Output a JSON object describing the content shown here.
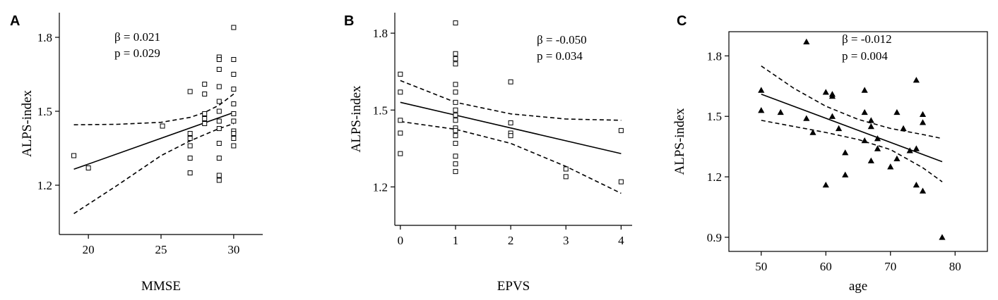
{
  "chart_data": [
    {
      "panel": "A",
      "type": "scatter",
      "xlabel": "MMSE",
      "ylabel": "ALPS-index",
      "xlim": [
        18,
        32
      ],
      "ylim": [
        1.0,
        1.9
      ],
      "xticks": [
        20,
        25,
        30
      ],
      "yticks": [
        1.2,
        1.5,
        1.8
      ],
      "marker": "square-open",
      "annotations": [
        "β = 0.021",
        "p = 0.029"
      ],
      "fit": {
        "x": [
          19,
          30
        ],
        "y": [
          1.265,
          1.495
        ]
      },
      "ci_upper": {
        "x": [
          19,
          22,
          25,
          27,
          28,
          29,
          30
        ],
        "y": [
          1.445,
          1.447,
          1.455,
          1.475,
          1.495,
          1.525,
          1.57
        ]
      },
      "ci_lower": {
        "x": [
          19,
          22,
          25,
          27,
          28,
          29,
          30
        ],
        "y": [
          1.085,
          1.2,
          1.32,
          1.38,
          1.405,
          1.43,
          1.45
        ]
      },
      "points": [
        [
          19,
          1.32
        ],
        [
          20,
          1.27
        ],
        [
          25.1,
          1.44
        ],
        [
          27,
          1.58
        ],
        [
          27,
          1.41
        ],
        [
          27,
          1.39
        ],
        [
          27,
          1.36
        ],
        [
          27,
          1.31
        ],
        [
          27,
          1.25
        ],
        [
          28,
          1.61
        ],
        [
          28,
          1.57
        ],
        [
          28,
          1.49
        ],
        [
          28,
          1.47
        ],
        [
          28,
          1.45
        ],
        [
          29,
          1.72
        ],
        [
          29,
          1.71
        ],
        [
          29,
          1.67
        ],
        [
          29,
          1.6
        ],
        [
          29,
          1.54
        ],
        [
          29,
          1.5
        ],
        [
          29,
          1.46
        ],
        [
          29,
          1.43
        ],
        [
          29,
          1.37
        ],
        [
          29,
          1.31
        ],
        [
          29,
          1.24
        ],
        [
          29,
          1.22
        ],
        [
          30,
          1.84
        ],
        [
          30,
          1.71
        ],
        [
          30,
          1.65
        ],
        [
          30,
          1.59
        ],
        [
          30,
          1.53
        ],
        [
          30,
          1.49
        ],
        [
          30,
          1.46
        ],
        [
          30,
          1.42
        ],
        [
          30,
          1.41
        ],
        [
          30,
          1.39
        ],
        [
          30,
          1.36
        ]
      ]
    },
    {
      "panel": "B",
      "type": "scatter",
      "xlabel": "EPVS",
      "ylabel": "ALPS-index",
      "xlim": [
        -0.1,
        4.2
      ],
      "ylim": [
        1.05,
        1.88
      ],
      "xticks": [
        0,
        1,
        2,
        3,
        4
      ],
      "yticks": [
        1.2,
        1.5,
        1.8
      ],
      "marker": "square-open",
      "annotations": [
        "β = -0.050",
        "p = 0.034"
      ],
      "fit": {
        "x": [
          0,
          4
        ],
        "y": [
          1.53,
          1.33
        ]
      },
      "ci_upper": {
        "x": [
          0,
          1,
          2,
          3,
          4
        ],
        "y": [
          1.615,
          1.53,
          1.485,
          1.465,
          1.46
        ]
      },
      "ci_lower": {
        "x": [
          0,
          1,
          2,
          3,
          4
        ],
        "y": [
          1.455,
          1.425,
          1.37,
          1.28,
          1.175
        ]
      },
      "points": [
        [
          0,
          1.64
        ],
        [
          0,
          1.57
        ],
        [
          0,
          1.46
        ],
        [
          0,
          1.41
        ],
        [
          0,
          1.33
        ],
        [
          1,
          1.84
        ],
        [
          1,
          1.72
        ],
        [
          1,
          1.7
        ],
        [
          1,
          1.68
        ],
        [
          1,
          1.6
        ],
        [
          1,
          1.57
        ],
        [
          1,
          1.53
        ],
        [
          1,
          1.5
        ],
        [
          1,
          1.48
        ],
        [
          1,
          1.46
        ],
        [
          1,
          1.43
        ],
        [
          1,
          1.42
        ],
        [
          1,
          1.4
        ],
        [
          1,
          1.37
        ],
        [
          1,
          1.32
        ],
        [
          1,
          1.29
        ],
        [
          1,
          1.26
        ],
        [
          2,
          1.61
        ],
        [
          2,
          1.45
        ],
        [
          2,
          1.41
        ],
        [
          2,
          1.4
        ],
        [
          3,
          1.27
        ],
        [
          3,
          1.24
        ],
        [
          4,
          1.42
        ],
        [
          4,
          1.22
        ]
      ]
    },
    {
      "panel": "C",
      "type": "scatter",
      "xlabel": "age",
      "ylabel": "ALPS-index",
      "xlim": [
        45,
        85
      ],
      "ylim": [
        0.83,
        1.92
      ],
      "xticks": [
        50,
        60,
        70,
        80
      ],
      "yticks": [
        0.9,
        1.2,
        1.5,
        1.8
      ],
      "marker": "triangle-filled",
      "annotations": [
        "β = -0.012",
        "p = 0.004"
      ],
      "fit": {
        "x": [
          50,
          78
        ],
        "y": [
          1.61,
          1.275
        ]
      },
      "ci_upper": {
        "x": [
          50,
          55,
          60,
          65,
          70,
          75,
          78
        ],
        "y": [
          1.75,
          1.64,
          1.55,
          1.485,
          1.44,
          1.41,
          1.39
        ]
      },
      "ci_lower": {
        "x": [
          50,
          55,
          60,
          65,
          70,
          75,
          78
        ],
        "y": [
          1.48,
          1.45,
          1.42,
          1.385,
          1.335,
          1.245,
          1.175
        ]
      },
      "points": [
        [
          50,
          1.63
        ],
        [
          50,
          1.53
        ],
        [
          53,
          1.52
        ],
        [
          57,
          1.87
        ],
        [
          57,
          1.49
        ],
        [
          58,
          1.42
        ],
        [
          60,
          1.62
        ],
        [
          60,
          1.16
        ],
        [
          61,
          1.61
        ],
        [
          61,
          1.6
        ],
        [
          61,
          1.5
        ],
        [
          62,
          1.44
        ],
        [
          63,
          1.32
        ],
        [
          63,
          1.21
        ],
        [
          66,
          1.63
        ],
        [
          66,
          1.52
        ],
        [
          66,
          1.38
        ],
        [
          67,
          1.48
        ],
        [
          67,
          1.45
        ],
        [
          67,
          1.28
        ],
        [
          68,
          1.39
        ],
        [
          68,
          1.34
        ],
        [
          70,
          1.25
        ],
        [
          71,
          1.52
        ],
        [
          71,
          1.29
        ],
        [
          72,
          1.44
        ],
        [
          73,
          1.33
        ],
        [
          74,
          1.68
        ],
        [
          74,
          1.34
        ],
        [
          74,
          1.16
        ],
        [
          75,
          1.51
        ],
        [
          75,
          1.47
        ],
        [
          75,
          1.13
        ],
        [
          78,
          0.9
        ]
      ]
    }
  ]
}
